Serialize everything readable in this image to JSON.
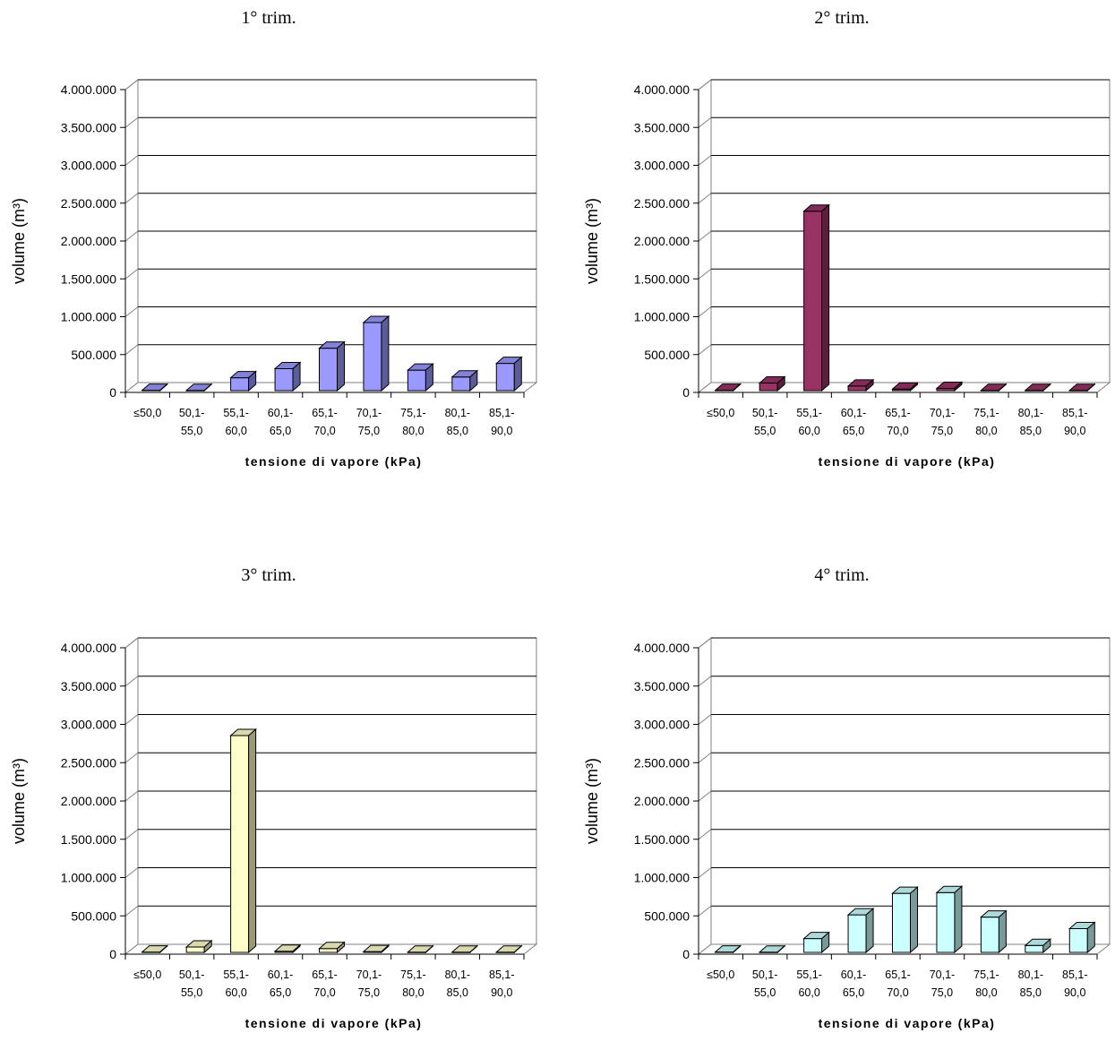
{
  "chart_data": [
    {
      "type": "bar",
      "title": "1° trim.",
      "xlabel": "tensione di vapore (kPa)",
      "ylabel": "volume (m³)",
      "categories": [
        [
          "≤50,0"
        ],
        [
          "50,1-",
          "55,0"
        ],
        [
          "55,1-",
          "60,0"
        ],
        [
          "60,1-",
          "65,0"
        ],
        [
          "65,1-",
          "70,0"
        ],
        [
          "70,1-",
          "75,0"
        ],
        [
          "75,1-",
          "80,0"
        ],
        [
          "80,1-",
          "85,0"
        ],
        [
          "85,1-",
          "90,0"
        ]
      ],
      "values": [
        5000,
        3000,
        170000,
        290000,
        560000,
        900000,
        270000,
        180000,
        360000
      ],
      "ylim": [
        0,
        4000000
      ],
      "yticks": [
        "0",
        "500.000",
        "1.000.000",
        "1.500.000",
        "2.000.000",
        "2.500.000",
        "3.000.000",
        "3.500.000",
        "4.000.000"
      ],
      "grid": true,
      "legend": "none",
      "color": "#9999ff"
    },
    {
      "type": "bar",
      "title": "2° trim.",
      "xlabel": "tensione di vapore (kPa)",
      "ylabel": "volume (m³)",
      "categories": [
        [
          "≤50,0"
        ],
        [
          "50,1-",
          "55,0"
        ],
        [
          "55,1-",
          "60,0"
        ],
        [
          "60,1-",
          "65,0"
        ],
        [
          "65,1-",
          "70,0"
        ],
        [
          "70,1-",
          "75,0"
        ],
        [
          "75,1-",
          "80,0"
        ],
        [
          "80,1-",
          "85,0"
        ],
        [
          "85,1-",
          "90,0"
        ]
      ],
      "values": [
        5000,
        100000,
        2370000,
        60000,
        20000,
        30000,
        3000,
        3000,
        3000
      ],
      "ylim": [
        0,
        4000000
      ],
      "yticks": [
        "0",
        "500.000",
        "1.000.000",
        "1.500.000",
        "2.000.000",
        "2.500.000",
        "3.000.000",
        "3.500.000",
        "4.000.000"
      ],
      "grid": true,
      "legend": "none",
      "color": "#993366"
    },
    {
      "type": "bar",
      "title": "3° trim.",
      "xlabel": "tensione di vapore (kPa)",
      "ylabel": "volume (m³)",
      "categories": [
        [
          "≤50,0"
        ],
        [
          "50,1-",
          "55,0"
        ],
        [
          "55,1-",
          "60,0"
        ],
        [
          "60,1-",
          "65,0"
        ],
        [
          "65,1-",
          "70,0"
        ],
        [
          "70,1-",
          "75,0"
        ],
        [
          "75,1-",
          "80,0"
        ],
        [
          "80,1-",
          "85,0"
        ],
        [
          "85,1-",
          "90,0"
        ]
      ],
      "values": [
        5000,
        70000,
        2830000,
        15000,
        50000,
        10000,
        3000,
        3000,
        3000
      ],
      "ylim": [
        0,
        4000000
      ],
      "yticks": [
        "0",
        "500.000",
        "1.000.000",
        "1.500.000",
        "2.000.000",
        "2.500.000",
        "3.000.000",
        "3.500.000",
        "4.000.000"
      ],
      "grid": true,
      "legend": "none",
      "color": "#ffffcc"
    },
    {
      "type": "bar",
      "title": "4° trim.",
      "xlabel": "tensione di vapore (kPa)",
      "ylabel": "volume (m³)",
      "categories": [
        [
          "≤50,0"
        ],
        [
          "50,1-",
          "55,0"
        ],
        [
          "55,1-",
          "60,0"
        ],
        [
          "60,1-",
          "65,0"
        ],
        [
          "65,1-",
          "70,0"
        ],
        [
          "70,1-",
          "75,0"
        ],
        [
          "75,1-",
          "80,0"
        ],
        [
          "80,1-",
          "85,0"
        ],
        [
          "85,1-",
          "90,0"
        ]
      ],
      "values": [
        5000,
        3000,
        180000,
        490000,
        770000,
        780000,
        460000,
        90000,
        310000
      ],
      "ylim": [
        0,
        4000000
      ],
      "yticks": [
        "0",
        "500.000",
        "1.000.000",
        "1.500.000",
        "2.000.000",
        "2.500.000",
        "3.000.000",
        "3.500.000",
        "4.000.000"
      ],
      "grid": true,
      "legend": "none",
      "color": "#ccffff"
    }
  ]
}
